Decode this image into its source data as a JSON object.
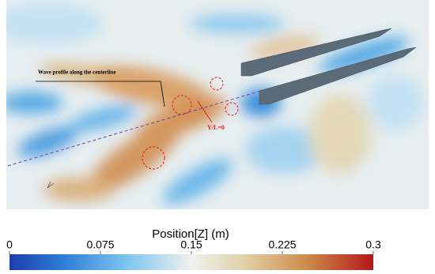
{
  "annotations": {
    "centerline": "Wave profile along the centerline",
    "position": "Y/L=0"
  },
  "colorbar": {
    "title": "Position[Z] (m)",
    "range": [
      0,
      0.3
    ],
    "ticks": [
      0,
      0.075,
      0.15,
      0.225,
      0.3
    ]
  }
}
